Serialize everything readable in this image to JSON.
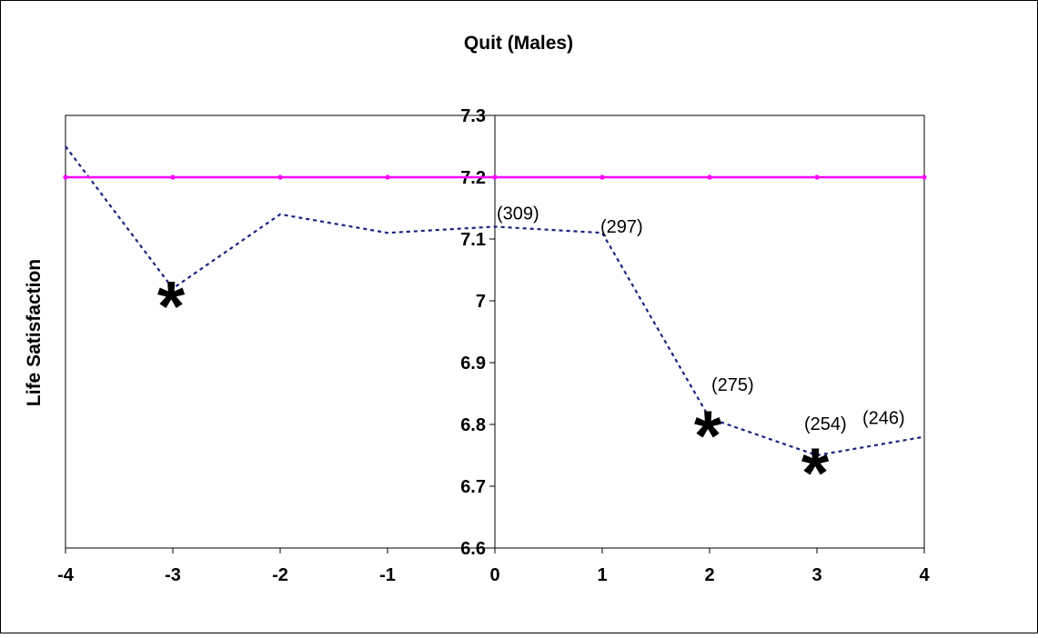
{
  "chart_data": {
    "type": "line",
    "title": "Quit (Males)",
    "xlabel": "",
    "ylabel": "Life Satisfaction",
    "x": [
      -4,
      -3,
      -2,
      -1,
      0,
      1,
      2,
      3,
      4
    ],
    "xlim": [
      -4,
      4
    ],
    "ylim": [
      6.6,
      7.3
    ],
    "x_tick_labels": [
      "-4",
      "-3",
      "-2",
      "-1",
      "0",
      "1",
      "2",
      "3",
      "4"
    ],
    "y_tick_labels": [
      "6.6",
      "6.7",
      "6.8",
      "6.9",
      "7",
      "7.1",
      "7.2",
      "7.3"
    ],
    "grid": false,
    "legend": "none",
    "series": [
      {
        "style": "dashed",
        "color": "#1a237e",
        "values": [
          7.25,
          7.02,
          7.14,
          7.11,
          7.12,
          7.11,
          6.81,
          6.75,
          6.78
        ]
      },
      {
        "style": "solid",
        "color": "#ff00ff",
        "values": [
          7.2,
          7.2,
          7.2,
          7.2,
          7.2,
          7.2,
          7.2,
          7.2,
          7.2
        ]
      }
    ],
    "annotations": [
      {
        "text": "(309)",
        "x": 0,
        "y": 7.12
      },
      {
        "text": "(297)",
        "x": 1,
        "y": 7.11
      },
      {
        "text": "(275)",
        "x": 2,
        "y": 6.81
      },
      {
        "text": "(254)",
        "x": 3,
        "y": 6.75
      },
      {
        "text": "(246)",
        "x": 4,
        "y": 6.78
      }
    ],
    "significance_markers": [
      {
        "symbol": "*",
        "x": -3,
        "y": 7.02
      },
      {
        "symbol": "*",
        "x": 2,
        "y": 6.81
      },
      {
        "symbol": "*",
        "x": 3,
        "y": 6.75
      }
    ]
  }
}
